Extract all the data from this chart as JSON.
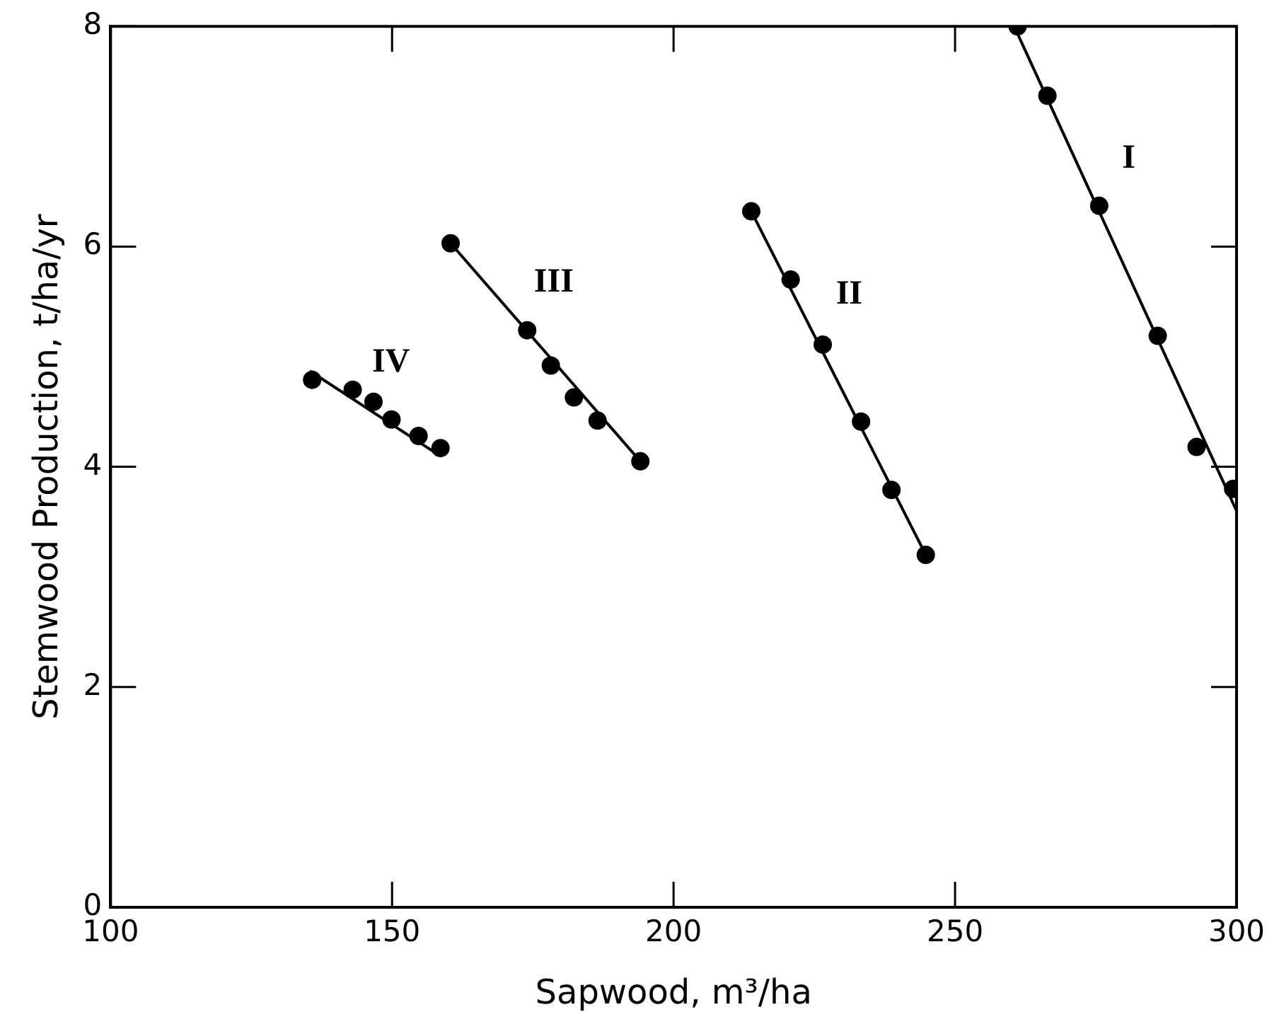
{
  "chart_data": {
    "type": "scatter",
    "xlabel": "Sapwood, m³/ha",
    "ylabel": "Stemwood Production, t/ha/yr",
    "xlim": [
      100,
      300
    ],
    "xticks": [
      100,
      150,
      200,
      250,
      300
    ],
    "ylim": [
      0,
      8
    ],
    "yticks": [
      0,
      2,
      4,
      6,
      8
    ],
    "grid": false,
    "legend": false,
    "marker": "circle",
    "series": [
      {
        "type": "scatter",
        "color": "#000000",
        "x": [
          135.8,
          143.0,
          146.7,
          149.9,
          154.7,
          158.6
        ],
        "values": [
          4.79,
          4.7,
          4.59,
          4.43,
          4.28,
          4.17
        ]
      },
      {
        "type": "line",
        "name": "IV",
        "marker": "none",
        "line_style": "solid",
        "color": "#000000",
        "x": [
          135.4,
          157.9
        ],
        "values": [
          4.87,
          4.12
        ]
      },
      {
        "type": "scatter",
        "color": "#000000",
        "x": [
          160.4,
          174.0,
          178.2,
          182.3,
          186.5,
          194.1
        ],
        "values": [
          6.03,
          5.24,
          4.92,
          4.63,
          4.42,
          4.05
        ]
      },
      {
        "type": "line",
        "name": "III",
        "marker": "none",
        "line_style": "solid",
        "color": "#000000",
        "x": [
          160.4,
          194.1
        ],
        "values": [
          6.03,
          4.05
        ]
      },
      {
        "type": "scatter",
        "color": "#000000",
        "x": [
          213.8,
          220.8,
          226.5,
          233.3,
          238.7,
          244.8
        ],
        "values": [
          6.32,
          5.7,
          5.11,
          4.41,
          3.79,
          3.2
        ]
      },
      {
        "type": "line",
        "name": "II",
        "marker": "none",
        "line_style": "solid",
        "color": "#000000",
        "x": [
          213.8,
          244.8
        ],
        "values": [
          6.32,
          3.2
        ]
      },
      {
        "type": "scatter",
        "color": "#000000",
        "x": [
          261.1,
          266.4,
          275.6,
          286.0,
          292.9,
          299.4
        ],
        "values": [
          8.0,
          7.37,
          6.37,
          5.19,
          4.18,
          3.8
        ]
      },
      {
        "type": "line",
        "name": "I",
        "marker": "none",
        "line_style": "solid",
        "color": "#000000",
        "x": [
          260.5,
          300
        ],
        "values": [
          8.0,
          3.6
        ]
      }
    ]
  }
}
